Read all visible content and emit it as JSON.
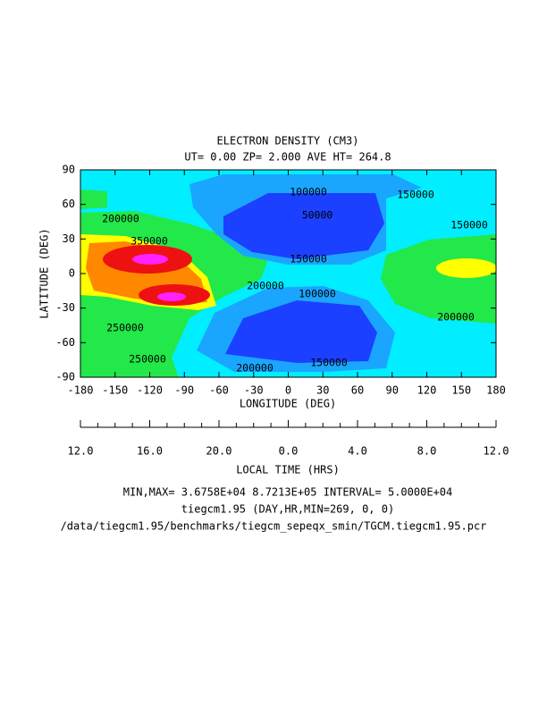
{
  "chart_data": {
    "type": "contour",
    "title": "ELECTRON DENSITY (CM3)",
    "subtitle": "UT= 0.00 ZP=  2.000 AVE HT= 264.8",
    "xlabel": "LONGITUDE (DEG)",
    "ylabel": "LATITUDE (DEG)",
    "xlim": [
      -180,
      180
    ],
    "xticks": [
      -180,
      -150,
      -120,
      -90,
      -60,
      -30,
      0,
      30,
      60,
      90,
      120,
      150,
      180
    ],
    "ylim": [
      -90,
      90
    ],
    "yticks": [
      -90,
      -60,
      -30,
      0,
      30,
      60,
      90
    ],
    "contour_labels": [
      100000,
      150000,
      50000,
      200000,
      150000,
      350000,
      150000,
      200000,
      100000,
      250000,
      200000,
      250000,
      200000,
      150000
    ],
    "local_time_label": "LOCAL TIME (HRS)",
    "local_time_ticks": [
      "12.0",
      "16.0",
      "20.0",
      "0.0",
      "4.0",
      "8.0",
      "12.0"
    ],
    "notes": [
      "MIN,MAX=  3.6758E+04  8.7213E+05 INTERVAL=  5.0000E+04",
      "tiegcm1.95 (DAY,HR,MIN=269, 0, 0)",
      "/data/tiegcm1.95/benchmarks/tiegcm_sepeqx_smin/TGCM.tiegcm1.95.pcr"
    ]
  }
}
